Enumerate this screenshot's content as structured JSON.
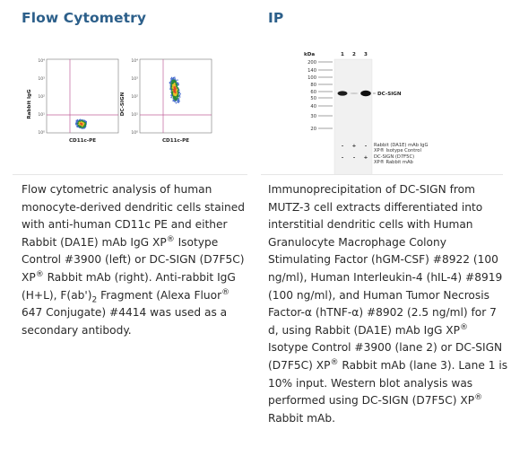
{
  "flow": {
    "heading": "Flow Cytometry",
    "plots": [
      {
        "ylabel": "Rabbit IgG",
        "xlabel": "CD11c-PE",
        "ticks": [
          "10⁴",
          "10³",
          "10²",
          "10¹",
          "10⁰"
        ]
      },
      {
        "ylabel": "DC-SIGN",
        "xlabel": "CD11c-PE",
        "ticks": [
          "10⁴",
          "10³",
          "10²",
          "10¹",
          "10⁰"
        ]
      }
    ],
    "caption": {
      "p1": "Flow cytometric analysis of human monocyte-derived dendritic cells stained with anti-human CD11c PE and either Rabbit (DA1E) mAb IgG XP",
      "reg1": "®",
      "p2": " Isotype Control #3900 (left) or DC-SIGN (D7F5C) XP",
      "reg2": "®",
      "p3": " Rabbit mAb (right). Anti-rabbit IgG (H+L), F(ab')",
      "sub2": "2",
      "p4": " Fragment (Alexa Fluor",
      "reg3": "®",
      "p5": " 647 Conjugate) #4414 was used as a secondary antibody."
    }
  },
  "ip": {
    "heading": "IP",
    "blot": {
      "kda_label": "kDa",
      "markers": [
        "200",
        "140",
        "100",
        "80",
        "60",
        "50",
        "40",
        "30",
        "20"
      ],
      "lanes": [
        "1",
        "2",
        "3"
      ],
      "band_label": "DC-SIGN",
      "rows": [
        {
          "signs": [
            "-",
            "+",
            "-"
          ],
          "label1": "Rabbit (DA1E) mAb IgG",
          "label2": "XP® Isotype Control"
        },
        {
          "signs": [
            "-",
            "-",
            "+"
          ],
          "label1": "DC-SIGN (D7F5C)",
          "label2": "XP® Rabbit mAb"
        }
      ]
    },
    "caption": {
      "p1": "Immunoprecipitation of DC-SIGN from MUTZ-3 cell extracts differentiated into interstitial dendritic cells with Human Granulocyte Macrophage Colony Stimulating Factor (hGM-CSF) #8922 (100 ng/ml), Human Interleukin-4 (hIL-4) #8919 (100 ng/ml), and Human Tumor Necrosis Factor-α (hTNF-α) #8902 (2.5 ng/ml) for 7 d, using Rabbit (DA1E) mAb IgG XP",
      "reg1": "®",
      "p2": " Isotype Control #3900 (lane 2) or DC-SIGN (D7F5C) XP",
      "reg2": "®",
      "p3": " Rabbit mAb (lane 3). Lane 1 is 10% input. Western blot analysis was performed using DC-SIGN (D7F5C) XP",
      "reg3": "®",
      "p4": " Rabbit mAb."
    }
  },
  "colors": {
    "heading": "#2c5f8a",
    "gate": "#c0609a",
    "scatter_core": "#2a8a3a"
  }
}
